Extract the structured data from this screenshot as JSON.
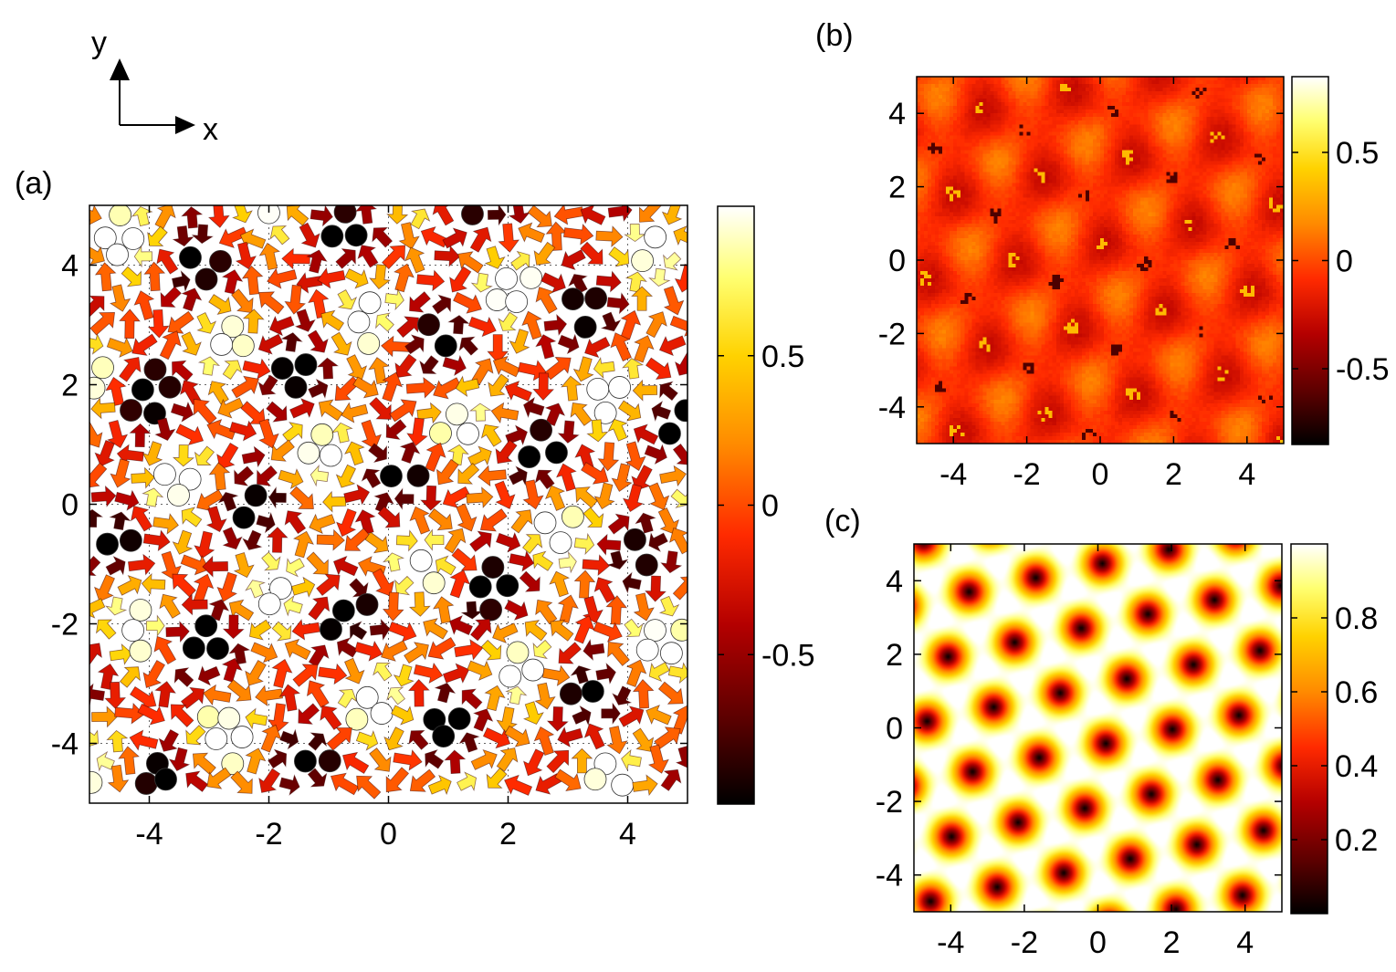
{
  "figure": {
    "axes_indicator": {
      "x_label": "x",
      "y_label": "y"
    },
    "colormap": [
      "#000000",
      "#5a0000",
      "#b40000",
      "#ff2a00",
      "#ff8a00",
      "#ffd200",
      "#ffff70",
      "#ffffff"
    ]
  },
  "chart_data": [
    {
      "id": "a",
      "panel_label": "(a)",
      "type": "heatmap",
      "description_type": "vector field (arrow glyphs colored by z-component)",
      "xlim": [
        -5,
        5
      ],
      "ylim": [
        -5,
        5
      ],
      "xticks": [
        -4,
        -2,
        0,
        2,
        4
      ],
      "yticks": [
        -4,
        -2,
        0,
        2,
        4
      ],
      "grid": true,
      "colorbar": {
        "range": [
          -1,
          1
        ],
        "ticks": [
          0.5,
          0,
          -0.5
        ],
        "tick_labels": [
          "0.5",
          "0",
          "-0.5"
        ]
      },
      "lattice": {
        "period": 2.45,
        "angle_deg": 12,
        "dark_center_example": [
          0.0,
          0.5
        ],
        "light_center_example": [
          1.4,
          1.3
        ]
      }
    },
    {
      "id": "b",
      "panel_label": "(b)",
      "type": "heatmap",
      "xlim": [
        -5,
        5
      ],
      "ylim": [
        -5,
        5
      ],
      "xticks": [
        -4,
        -2,
        0,
        2,
        4
      ],
      "yticks": [
        -4,
        -2,
        0,
        2,
        4
      ],
      "grid": false,
      "colorbar": {
        "range": [
          -0.85,
          0.85
        ],
        "ticks": [
          0.5,
          0,
          -0.5
        ],
        "tick_labels": [
          "0.5",
          "0",
          "-0.5"
        ]
      },
      "lattice": {
        "period": 2.45,
        "angle_deg": 12
      }
    },
    {
      "id": "c",
      "panel_label": "(c)",
      "type": "heatmap",
      "xlim": [
        -5,
        5
      ],
      "ylim": [
        -5,
        5
      ],
      "xticks": [
        -4,
        -2,
        0,
        2,
        4
      ],
      "yticks": [
        -4,
        -2,
        0,
        2,
        4
      ],
      "grid": false,
      "colorbar": {
        "range": [
          0,
          1
        ],
        "ticks": [
          0.8,
          0.6,
          0.4,
          0.2
        ],
        "tick_labels": [
          "0.8",
          "0.6",
          "0.4",
          "0.2"
        ]
      },
      "lattice": {
        "period": 1.85,
        "angle_deg": 12,
        "spot_example": [
          -3.5,
          3.7
        ]
      }
    }
  ]
}
